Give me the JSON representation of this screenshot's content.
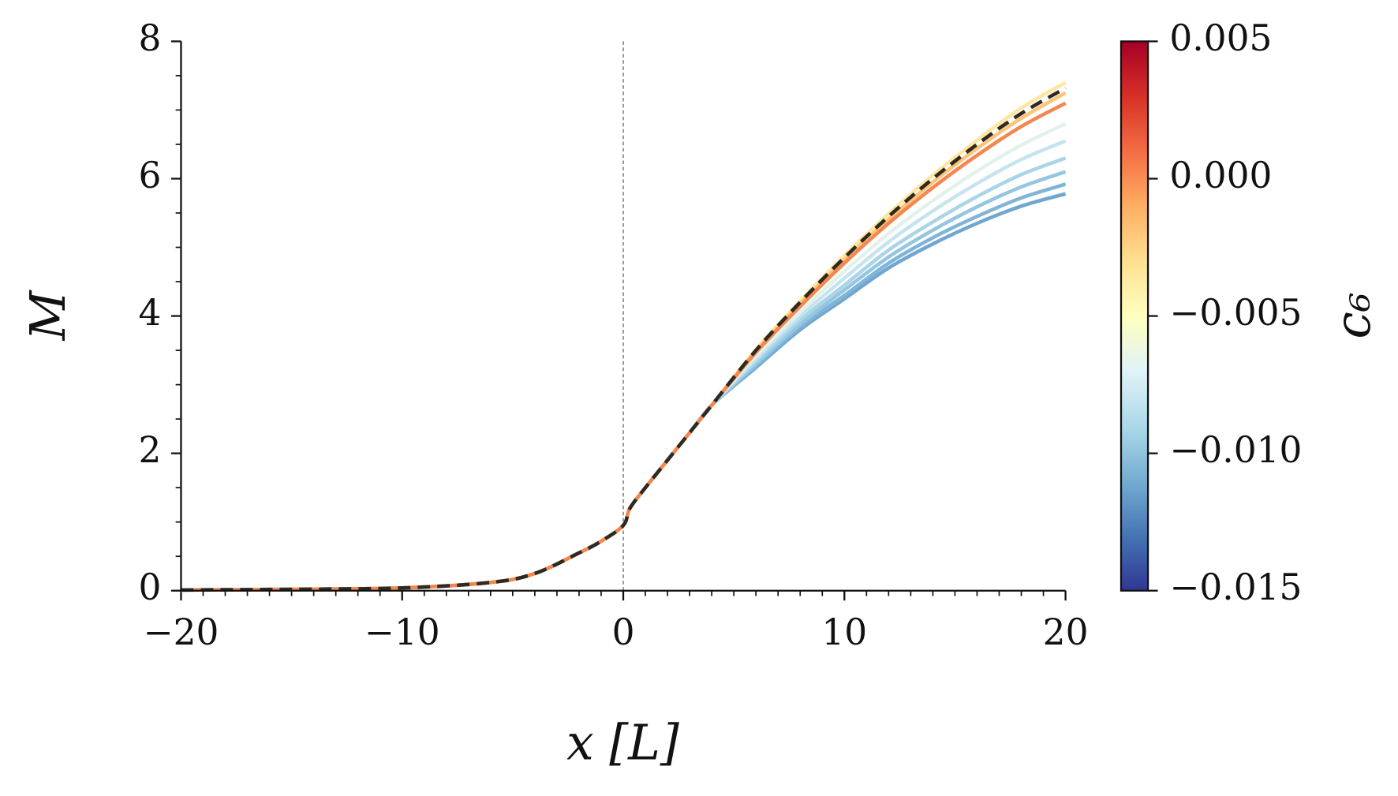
{
  "chart_data": {
    "type": "line",
    "xlabel": "x [L]",
    "ylabel": "M",
    "x": [
      -20,
      -15,
      -10,
      -6,
      -4,
      -2,
      -1,
      0,
      0.3,
      1,
      2,
      3,
      4,
      6,
      8,
      10,
      12,
      14,
      16,
      18,
      20
    ],
    "xlim": [
      -20,
      20
    ],
    "ylim": [
      0,
      8
    ],
    "xticks": [
      {
        "value": -20,
        "label": "−20"
      },
      {
        "value": -10,
        "label": "−10"
      },
      0,
      10,
      20
    ],
    "yticks": [
      0,
      2,
      4,
      6,
      8
    ],
    "xminor_step": 1,
    "yminor_step": 0.5,
    "vline": 0,
    "series": [
      {
        "color": "#6fa7d1",
        "values": [
          0.01,
          0.02,
          0.04,
          0.12,
          0.25,
          0.55,
          0.72,
          0.95,
          1.2,
          1.5,
          1.9,
          2.3,
          2.7,
          3.25,
          3.8,
          4.25,
          4.7,
          5.05,
          5.35,
          5.6,
          5.78
        ]
      },
      {
        "color": "#80b5d7",
        "values": [
          0.01,
          0.02,
          0.04,
          0.12,
          0.25,
          0.55,
          0.72,
          0.95,
          1.2,
          1.5,
          1.9,
          2.3,
          2.7,
          3.27,
          3.84,
          4.3,
          4.77,
          5.14,
          5.45,
          5.72,
          5.92
        ]
      },
      {
        "color": "#95c6e0",
        "values": [
          0.01,
          0.02,
          0.04,
          0.12,
          0.25,
          0.55,
          0.72,
          0.95,
          1.2,
          1.5,
          1.9,
          2.3,
          2.7,
          3.3,
          3.88,
          4.38,
          4.86,
          5.25,
          5.59,
          5.88,
          6.1
        ]
      },
      {
        "color": "#aad5e7",
        "values": [
          0.01,
          0.02,
          0.04,
          0.12,
          0.25,
          0.55,
          0.72,
          0.95,
          1.2,
          1.5,
          1.9,
          2.3,
          2.7,
          3.34,
          3.94,
          4.45,
          4.96,
          5.37,
          5.74,
          6.06,
          6.3
        ]
      },
      {
        "color": "#c6e4ef",
        "values": [
          0.01,
          0.02,
          0.04,
          0.12,
          0.25,
          0.55,
          0.72,
          0.95,
          1.2,
          1.5,
          1.9,
          2.3,
          2.7,
          3.38,
          4.0,
          4.55,
          5.08,
          5.53,
          5.93,
          6.28,
          6.55
        ]
      },
      {
        "color": "#e2f2ea",
        "values": [
          0.01,
          0.02,
          0.04,
          0.12,
          0.25,
          0.55,
          0.72,
          0.95,
          1.2,
          1.5,
          1.9,
          2.3,
          2.7,
          3.42,
          4.06,
          4.65,
          5.2,
          5.68,
          6.11,
          6.49,
          6.8
        ]
      },
      {
        "color": "#fde7a3",
        "values": [
          0.01,
          0.02,
          0.04,
          0.12,
          0.25,
          0.55,
          0.72,
          0.95,
          1.2,
          1.5,
          1.9,
          2.3,
          2.7,
          3.51,
          4.22,
          4.88,
          5.49,
          6.05,
          6.56,
          7.03,
          7.4
        ]
      },
      {
        "color": "#fdc47a",
        "values": [
          0.01,
          0.02,
          0.04,
          0.12,
          0.25,
          0.55,
          0.72,
          0.95,
          1.2,
          1.5,
          1.9,
          2.3,
          2.7,
          3.49,
          4.18,
          4.82,
          5.41,
          5.95,
          6.44,
          6.88,
          7.25
        ]
      },
      {
        "color": "#f4874f",
        "values": [
          0.01,
          0.02,
          0.04,
          0.12,
          0.25,
          0.55,
          0.72,
          0.95,
          1.2,
          1.5,
          1.9,
          2.3,
          2.7,
          3.47,
          4.14,
          4.77,
          5.35,
          5.87,
          6.34,
          6.76,
          7.1
        ]
      },
      {
        "color": "#2e2a22",
        "linestyle": "dashed",
        "values": [
          0.01,
          0.02,
          0.04,
          0.12,
          0.25,
          0.55,
          0.72,
          0.95,
          1.2,
          1.5,
          1.9,
          2.3,
          2.7,
          3.5,
          4.2,
          4.85,
          5.45,
          6.0,
          6.5,
          6.95,
          7.32
        ]
      }
    ],
    "colorbar": {
      "label": "c₆",
      "lim": [
        -0.015,
        0.005
      ],
      "ticks": [
        {
          "value": -0.015,
          "label": "−0.015"
        },
        {
          "value": -0.01,
          "label": "−0.010"
        },
        {
          "value": -0.005,
          "label": "−0.005"
        },
        {
          "value": 0,
          "label": "0.000"
        },
        {
          "value": 0.005,
          "label": "0.005"
        }
      ],
      "colors": [
        "#313695",
        "#4575b4",
        "#74add1",
        "#abd9e9",
        "#e0f3f8",
        "#ffffbf",
        "#fee090",
        "#fdae61",
        "#f46d43",
        "#d73027",
        "#a50026"
      ]
    }
  }
}
